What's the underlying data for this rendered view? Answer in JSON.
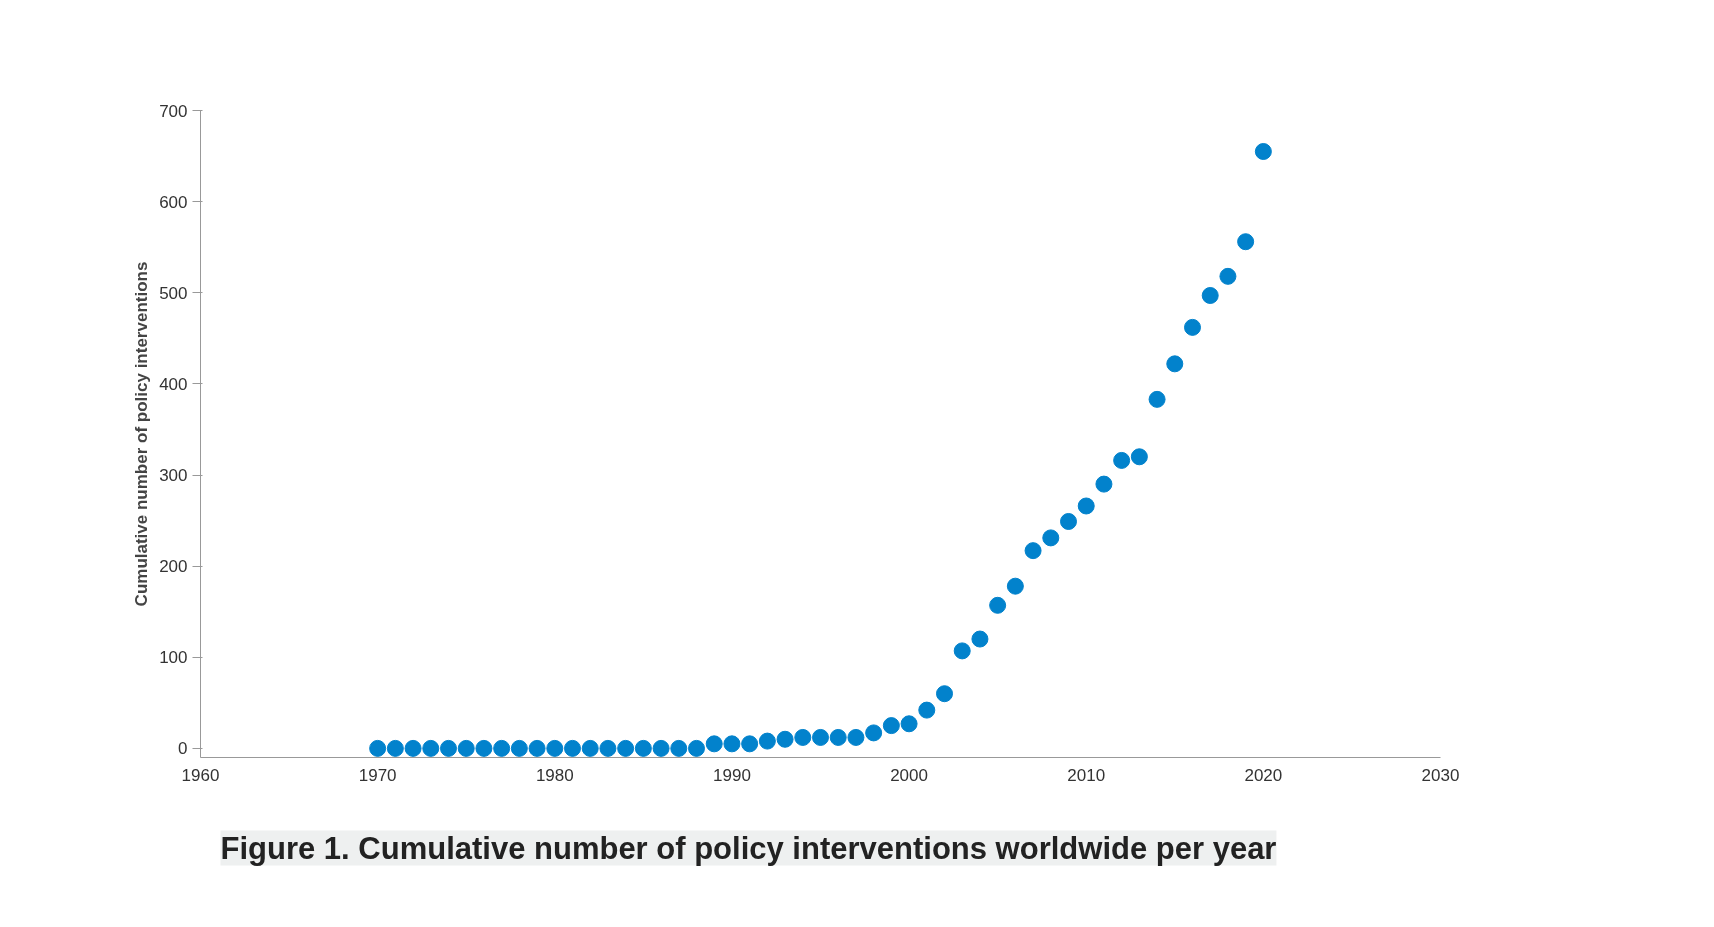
{
  "chart_data": {
    "type": "scatter",
    "title": "Figure 1. Cumulative number of policy interventions worldwide per year",
    "ylabel": "Cumulative number of policy interventions",
    "x": [
      1970,
      1971,
      1972,
      1973,
      1974,
      1975,
      1976,
      1977,
      1978,
      1979,
      1980,
      1981,
      1982,
      1983,
      1984,
      1985,
      1986,
      1987,
      1988,
      1989,
      1990,
      1991,
      1992,
      1993,
      1994,
      1995,
      1996,
      1997,
      1998,
      1999,
      2000,
      2001,
      2002,
      2003,
      2004,
      2005,
      2006,
      2007,
      2008,
      2009,
      2010,
      2011,
      2012,
      2013,
      2014,
      2015,
      2016,
      2017,
      2018,
      2019,
      2020
    ],
    "series": [
      {
        "color": "#0282cc",
        "values": [
          0,
          0,
          0,
          0,
          0,
          0,
          0,
          0,
          0,
          0,
          0,
          0,
          0,
          0,
          0,
          0,
          0,
          0,
          0,
          5,
          5,
          5,
          8,
          10,
          12,
          12,
          12,
          12,
          17,
          25,
          27,
          42,
          60,
          107,
          120,
          157,
          178,
          217,
          231,
          249,
          266,
          290,
          316,
          320,
          383,
          422,
          462,
          497,
          518,
          556,
          655
        ]
      }
    ],
    "xlim": [
      1960,
      2030
    ],
    "xticks": [
      1960,
      1970,
      1980,
      1990,
      2000,
      2010,
      2020,
      2030
    ],
    "ylim": [
      -10,
      700
    ],
    "yticks": [
      0,
      100,
      200,
      300,
      400,
      500,
      600,
      700
    ],
    "marker": "circle",
    "grid": false
  }
}
